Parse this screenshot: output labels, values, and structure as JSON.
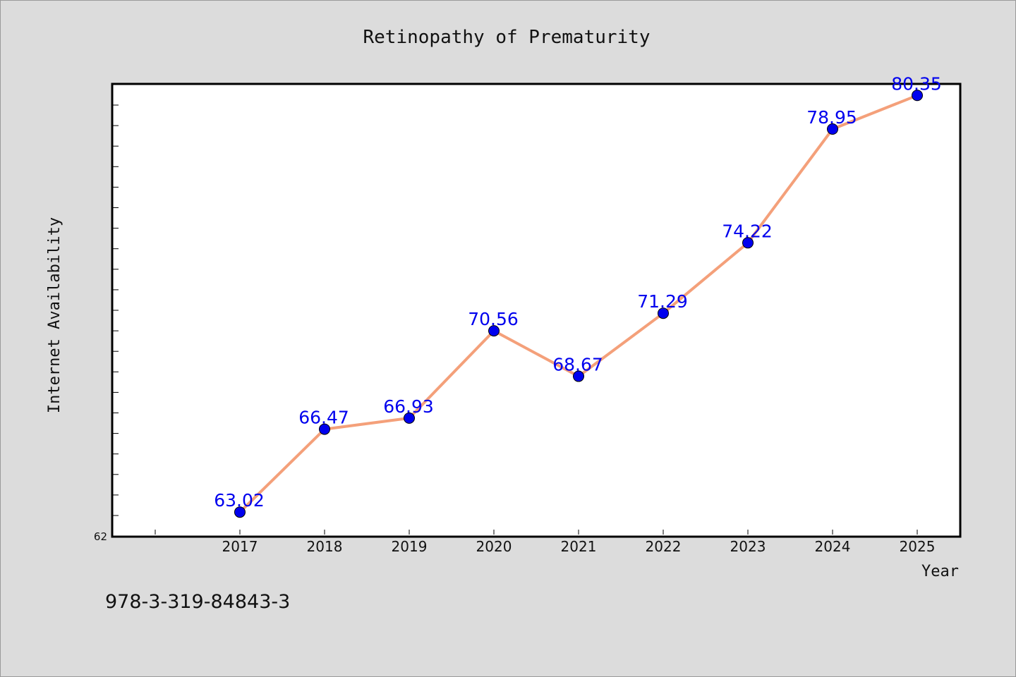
{
  "chart_data": {
    "type": "line",
    "title": "Retinopathy of Prematurity",
    "xlabel": "Year",
    "ylabel": "Internet Availability",
    "categories": [
      "2017",
      "2018",
      "2019",
      "2020",
      "2021",
      "2022",
      "2023",
      "2024",
      "2025"
    ],
    "series": [
      {
        "values": [
          63.02,
          66.47,
          66.93,
          70.56,
          68.67,
          71.29,
          74.22,
          78.95,
          80.35
        ],
        "data_labels": [
          "63.02",
          "66.47",
          "66.93",
          "70.56",
          "68.67",
          "71.29",
          "74.22",
          "78.95",
          "80.35"
        ],
        "line_color": "#f4a07a",
        "marker_color": "#0000ee"
      }
    ],
    "ylim": [
      62,
      84
    ],
    "y_tick_labels": [
      "62"
    ],
    "grid": false,
    "legend": "none"
  },
  "footer": {
    "isbn": "978-3-319-84843-3"
  }
}
